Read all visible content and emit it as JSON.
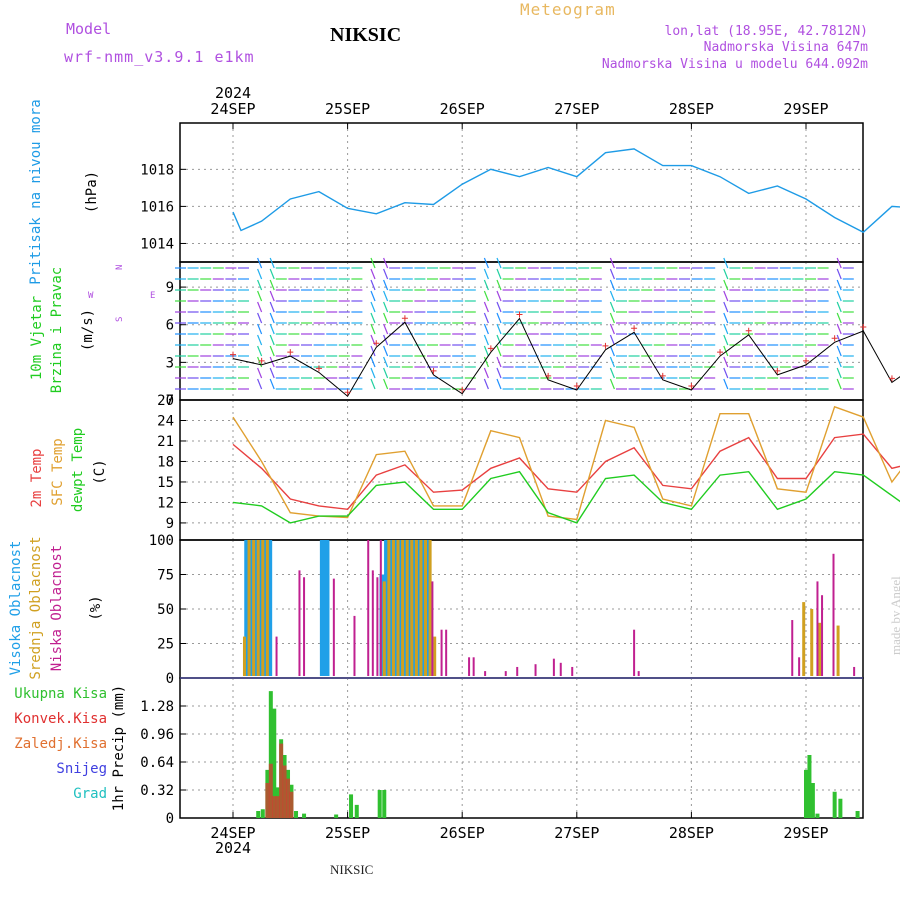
{
  "header": {
    "model_label": "Model",
    "model_name": "wrf-nmm_v3.9.1  e1km",
    "station": "NIKSIC",
    "title": "Meteogram",
    "coords": "lon,lat (18.95E, 42.7812N)",
    "elevation": "Nadmorska Visina 647m",
    "model_elevation": "Nadmorska Visina u modelu 644.092m",
    "footer_station": "NIKSIC",
    "watermark": "made by Angel"
  },
  "colors": {
    "magenta_text": "#b050e0",
    "title_orange": "#e8b860",
    "pressure": "#1e9be6",
    "temp2m": "#e84040",
    "sfc_temp": "#e0a030",
    "dewpt": "#20cc20",
    "high_cloud": "#20a0e8",
    "mid_cloud": "#d0a020",
    "low_cloud": "#c02090",
    "total_precip": "#30c030",
    "conv_precip": "#e03030",
    "frozen_precip": "#e07030",
    "snow": "#4040e0",
    "hail": "#20c0c0",
    "grid": "#999999",
    "wind_speed_line": "#000000",
    "wind_gust_marker": "#e03030"
  },
  "chart_data": [
    {
      "type": "line",
      "panel": "pressure",
      "ylabel_color": "Pritisak na nivou mora",
      "ylabel": "(hPa)",
      "x_ticks": [
        "24SEP",
        "25SEP",
        "26SEP",
        "27SEP",
        "28SEP",
        "29SEP"
      ],
      "x_year": "2024",
      "ylim": [
        1013.0,
        1020.5
      ],
      "yticks": [
        "1014",
        "1016",
        "1018"
      ],
      "grid": true,
      "series": [
        {
          "x": [
            0,
            0.07,
            0.25,
            0.5,
            0.75,
            1.0,
            1.25,
            1.5,
            1.75,
            2.0,
            2.25,
            2.5,
            2.75,
            3.0,
            3.25,
            3.5,
            3.75,
            4.0,
            4.25,
            4.5,
            4.75,
            5.0,
            5.25,
            5.5,
            5.75,
            6.0
          ],
          "values": [
            1015.7,
            1014.7,
            1015.2,
            1016.4,
            1016.8,
            1015.9,
            1015.6,
            1016.2,
            1016.1,
            1017.2,
            1018.0,
            1017.6,
            1018.1,
            1017.6,
            1018.9,
            1019.1,
            1018.2,
            1018.2,
            1017.6,
            1016.7,
            1017.1,
            1016.4,
            1015.4,
            1014.6,
            1016.0,
            1015.9
          ]
        }
      ]
    },
    {
      "type": "line",
      "panel": "wind",
      "ylabel_color": [
        "10m Vjetar",
        "Brzina i Pravac"
      ],
      "ylabel": "(m/s)",
      "compass": [
        "N",
        "W",
        "E",
        "S"
      ],
      "ylim": [
        0,
        11
      ],
      "yticks": [
        "0",
        "3",
        "6",
        "9"
      ],
      "grid": true,
      "series": [
        {
          "name": "speed",
          "x": [
            0,
            0.25,
            0.5,
            0.75,
            1.0,
            1.25,
            1.5,
            1.75,
            2.0,
            2.25,
            2.5,
            2.75,
            3.0,
            3.25,
            3.5,
            3.75,
            4.0,
            4.25,
            4.5,
            4.75,
            5.0,
            5.25,
            5.5,
            5.75,
            6.0
          ],
          "values": [
            3.3,
            2.8,
            3.5,
            2.2,
            0.3,
            4.2,
            6.2,
            2.0,
            0.5,
            3.8,
            6.5,
            1.6,
            0.8,
            4.0,
            5.4,
            1.6,
            0.8,
            3.5,
            5.2,
            2.0,
            2.8,
            4.6,
            5.5,
            1.4,
            3.0
          ]
        }
      ]
    },
    {
      "type": "line",
      "panel": "temperature",
      "ylabel_color": [
        "2m Temp",
        "SFC Temp",
        "dewpt Temp"
      ],
      "ylabel": "(C)",
      "ylim": [
        6.5,
        27
      ],
      "yticks": [
        "9",
        "12",
        "15",
        "18",
        "21",
        "24",
        "27"
      ],
      "grid": true,
      "series": [
        {
          "name": "2m Temp",
          "x": [
            0,
            0.25,
            0.5,
            0.75,
            1.0,
            1.25,
            1.5,
            1.75,
            2.0,
            2.25,
            2.5,
            2.75,
            3.0,
            3.25,
            3.5,
            3.75,
            4.0,
            4.25,
            4.5,
            4.75,
            5.0,
            5.25,
            5.5,
            5.75,
            6.0
          ],
          "values": [
            20.5,
            17.0,
            12.5,
            11.5,
            11.0,
            16.0,
            17.5,
            13.5,
            13.8,
            17.0,
            18.5,
            14.0,
            13.5,
            18.0,
            20.0,
            14.5,
            14.0,
            19.5,
            21.5,
            15.5,
            15.5,
            21.5,
            22.0,
            17.0,
            18.0
          ]
        },
        {
          "name": "SFC Temp",
          "x": [
            0,
            0.25,
            0.5,
            0.75,
            1.0,
            1.25,
            1.5,
            1.75,
            2.0,
            2.25,
            2.5,
            2.75,
            3.0,
            3.25,
            3.5,
            3.75,
            4.0,
            4.25,
            4.5,
            4.75,
            5.0,
            5.25,
            5.5,
            5.75,
            6.0
          ],
          "values": [
            24.5,
            18.0,
            10.5,
            10.0,
            9.8,
            19.0,
            19.5,
            11.5,
            11.5,
            22.5,
            21.5,
            10.0,
            9.5,
            24.0,
            23.0,
            12.5,
            11.5,
            25.0,
            25.0,
            14.0,
            13.5,
            26.0,
            24.5,
            15.0,
            20.5
          ]
        },
        {
          "name": "dewpt Temp",
          "x": [
            0,
            0.25,
            0.5,
            0.75,
            1.0,
            1.25,
            1.5,
            1.75,
            2.0,
            2.25,
            2.5,
            2.75,
            3.0,
            3.25,
            3.5,
            3.75,
            4.0,
            4.25,
            4.5,
            4.75,
            5.0,
            5.25,
            5.5,
            5.75,
            6.0
          ],
          "values": [
            12.0,
            11.5,
            9.0,
            10.0,
            10.0,
            14.5,
            15.0,
            11.0,
            11.0,
            15.5,
            16.5,
            10.5,
            9.0,
            15.5,
            16.0,
            12.0,
            11.0,
            16.0,
            16.5,
            11.0,
            12.5,
            16.5,
            16.0,
            13.0,
            10.0
          ]
        }
      ]
    },
    {
      "type": "bar",
      "panel": "clouds",
      "ylabel_color": [
        "Visoka Oblacnost",
        "Srednja Oblacnost",
        "Niska Oblacnost"
      ],
      "ylabel": "(%)",
      "ylim": [
        0,
        100
      ],
      "yticks": [
        "0",
        "25",
        "50",
        "75",
        "100"
      ],
      "grid": true,
      "series": [
        {
          "name": "Visoka Oblacnost",
          "x": [
            0.12,
            0.16,
            0.2,
            0.24,
            0.28,
            0.32,
            0.78,
            0.8,
            0.82,
            1.3,
            1.34,
            1.38,
            1.42,
            1.46,
            1.5,
            1.54,
            1.58,
            1.62,
            1.66,
            1.7
          ],
          "values": [
            100,
            100,
            100,
            100,
            100,
            100,
            100,
            100,
            100,
            75,
            100,
            100,
            100,
            100,
            100,
            100,
            100,
            100,
            100,
            100
          ]
        },
        {
          "name": "Srednja Oblacnost",
          "x": [
            0.1,
            0.14,
            0.18,
            0.22,
            0.26,
            0.3,
            1.32,
            1.36,
            1.4,
            1.44,
            1.48,
            1.52,
            1.56,
            1.6,
            1.64,
            1.68,
            1.72,
            1.76,
            4.98,
            5.05,
            5.12,
            5.28
          ],
          "values": [
            30,
            100,
            100,
            100,
            100,
            100,
            70,
            100,
            100,
            100,
            100,
            100,
            100,
            100,
            100,
            100,
            100,
            30,
            55,
            50,
            40,
            38
          ]
        },
        {
          "name": "Niska Oblacnost",
          "x": [
            0.38,
            0.58,
            0.62,
            0.88,
            1.06,
            1.18,
            1.22,
            1.26,
            1.29,
            1.74,
            1.82,
            1.86,
            2.06,
            2.1,
            2.2,
            2.38,
            2.48,
            2.64,
            2.8,
            2.86,
            2.96,
            3.5,
            3.54,
            4.88,
            4.94,
            5.1,
            5.14,
            5.24,
            5.42
          ],
          "values": [
            30,
            78,
            73,
            72,
            45,
            100,
            78,
            73,
            100,
            70,
            35,
            35,
            15,
            15,
            5,
            5,
            8,
            10,
            14,
            11,
            8,
            35,
            5,
            42,
            15,
            70,
            60,
            90,
            8
          ]
        }
      ]
    },
    {
      "type": "bar",
      "panel": "precipitation",
      "ylabel_color": [
        "Ukupna Kisa",
        "Konvek.Kisa",
        "Zaledj.Kisa",
        "Snijeg",
        "Grad"
      ],
      "ylabel": "1hr Precip (mm)",
      "ylim": [
        0,
        1.6
      ],
      "yticks": [
        "0",
        "0.32",
        "0.64",
        "0.96",
        "1.28"
      ],
      "grid": true,
      "series": [
        {
          "name": "Ukupna Kisa",
          "x": [
            0.22,
            0.26,
            0.3,
            0.33,
            0.36,
            0.39,
            0.42,
            0.45,
            0.48,
            0.51,
            0.55,
            0.62,
            0.9,
            1.03,
            1.08,
            1.28,
            1.32,
            5.0,
            5.03,
            5.06,
            5.1,
            5.25,
            5.3,
            5.45
          ],
          "values": [
            0.08,
            0.1,
            0.55,
            1.45,
            1.25,
            0.35,
            0.9,
            0.72,
            0.55,
            0.38,
            0.08,
            0.05,
            0.04,
            0.27,
            0.15,
            0.32,
            0.32,
            0.55,
            0.72,
            0.4,
            0.05,
            0.3,
            0.22,
            0.08
          ]
        },
        {
          "name": "Konvek.Kisa",
          "x": [
            0.3,
            0.33,
            0.36,
            0.39,
            0.42,
            0.45,
            0.48,
            0.51
          ],
          "values": [
            0.4,
            0.62,
            0.25,
            0.25,
            0.85,
            0.6,
            0.45,
            0.3
          ]
        }
      ]
    }
  ]
}
